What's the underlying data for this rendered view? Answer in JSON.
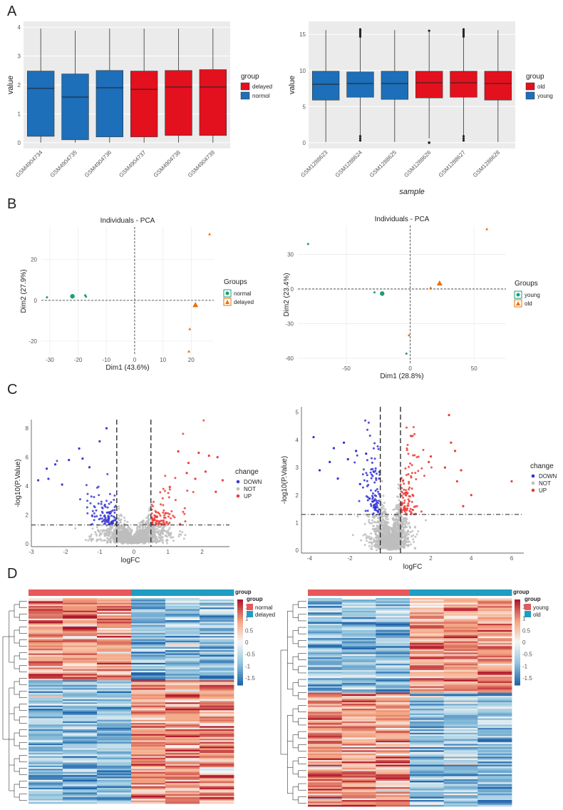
{
  "panels": {
    "A": "A",
    "B": "B",
    "C": "C",
    "D": "D"
  },
  "chart_data": [
    {
      "id": "A-left",
      "type": "box",
      "ylabel": "value",
      "ylim": [
        -0.2,
        4.2
      ],
      "yticks": [
        0,
        1,
        2,
        3,
        4
      ],
      "legend_title": "group",
      "groups": [
        {
          "name": "delayed",
          "color": "#e3101e"
        },
        {
          "name": "normol",
          "color": "#1c6fb8"
        }
      ],
      "boxes": [
        {
          "label": "GSM4904734",
          "group": "normol",
          "whislo": 0,
          "q1": 0.22,
          "med": 1.88,
          "q3": 2.48,
          "whishi": 3.95
        },
        {
          "label": "GSM4904735",
          "group": "normol",
          "whislo": 0,
          "q1": 0.1,
          "med": 1.58,
          "q3": 2.38,
          "whishi": 3.88
        },
        {
          "label": "GSM4904736",
          "group": "normol",
          "whislo": 0,
          "q1": 0.2,
          "med": 1.9,
          "q3": 2.5,
          "whishi": 3.95
        },
        {
          "label": "GSM4904737",
          "group": "delayed",
          "whislo": 0,
          "q1": 0.2,
          "med": 1.85,
          "q3": 2.48,
          "whishi": 3.95
        },
        {
          "label": "GSM4904738",
          "group": "delayed",
          "whislo": 0,
          "q1": 0.25,
          "med": 1.93,
          "q3": 2.5,
          "whishi": 3.95
        },
        {
          "label": "GSM4904739",
          "group": "delayed",
          "whislo": 0,
          "q1": 0.25,
          "med": 1.93,
          "q3": 2.53,
          "whishi": 3.95
        }
      ]
    },
    {
      "id": "A-right",
      "type": "box",
      "ylabel": "value",
      "xlabel": "sample",
      "ylim": [
        -0.8,
        16.8
      ],
      "yticks": [
        0,
        5,
        10,
        15
      ],
      "legend_title": "group",
      "groups": [
        {
          "name": "old",
          "color": "#e3101e"
        },
        {
          "name": "young",
          "color": "#1c6fb8"
        }
      ],
      "boxes": [
        {
          "label": "GSM1288623",
          "group": "young",
          "whislo": 0.1,
          "q1": 5.9,
          "med": 8.1,
          "q3": 9.9,
          "whishi": 15.6
        },
        {
          "label": "GSM1288624",
          "group": "young",
          "whislo": 1,
          "q1": 6.3,
          "med": 8.2,
          "q3": 9.8,
          "whishi": 15.3
        },
        {
          "label": "GSM1288625",
          "group": "young",
          "whislo": 0.1,
          "q1": 6.0,
          "med": 8.2,
          "q3": 9.9,
          "whishi": 15.6
        },
        {
          "label": "GSM1288626",
          "group": "old",
          "whislo": 0.6,
          "q1": 6.2,
          "med": 8.3,
          "q3": 9.9,
          "whishi": 15.3
        },
        {
          "label": "GSM1288627",
          "group": "old",
          "whislo": 1,
          "q1": 6.3,
          "med": 8.3,
          "q3": 9.9,
          "whishi": 15.3
        },
        {
          "label": "GSM1288628",
          "group": "old",
          "whislo": 0.1,
          "q1": 5.9,
          "med": 8.2,
          "q3": 9.9,
          "whishi": 15.6
        }
      ]
    },
    {
      "id": "B-left",
      "type": "scatter",
      "title": "Individuals - PCA",
      "xlabel": "Dim1 (43.6%)",
      "ylabel": "Dim2 (27.9%)",
      "xlim": [
        -33,
        28
      ],
      "ylim": [
        -27,
        36
      ],
      "xticks": [
        -30,
        -20,
        -10,
        0,
        10,
        20
      ],
      "yticks": [
        -20,
        0,
        20
      ],
      "legend_title": "Groups",
      "groups": [
        {
          "name": "normal",
          "color": "#1b9e77",
          "shape": "circle"
        },
        {
          "name": "delayed",
          "color": "#e6700f",
          "shape": "triangle"
        }
      ],
      "points": [
        {
          "x": -31,
          "y": 1.5,
          "group": "normal"
        },
        {
          "x": -17.5,
          "y": 2.5,
          "group": "normal"
        },
        {
          "x": -17.2,
          "y": 1.8,
          "group": "normal"
        },
        {
          "x": 26.5,
          "y": 32.5,
          "group": "delayed"
        },
        {
          "x": 19.5,
          "y": -14,
          "group": "delayed"
        },
        {
          "x": 19.2,
          "y": -25,
          "group": "delayed"
        }
      ],
      "centroids": [
        {
          "x": -22,
          "y": 2,
          "group": "normal"
        },
        {
          "x": 21.5,
          "y": -2.2,
          "group": "delayed"
        }
      ]
    },
    {
      "id": "B-right",
      "type": "scatter",
      "title": "Individuals - PCA",
      "xlabel": "Dim1 (28.8%)",
      "ylabel": "Dim2 (23.4%)",
      "xlim": [
        -88,
        75
      ],
      "ylim": [
        -65,
        55
      ],
      "xticks": [
        -50,
        0,
        50
      ],
      "yticks": [
        -60,
        -30,
        0,
        30
      ],
      "legend_title": "Groups",
      "groups": [
        {
          "name": "young",
          "color": "#1b9e77",
          "shape": "circle"
        },
        {
          "name": "old",
          "color": "#e6700f",
          "shape": "triangle"
        }
      ],
      "points": [
        {
          "x": -80,
          "y": 39,
          "group": "young"
        },
        {
          "x": -28,
          "y": -3,
          "group": "young"
        },
        {
          "x": -3,
          "y": -56,
          "group": "young"
        },
        {
          "x": 60,
          "y": 52,
          "group": "old"
        },
        {
          "x": 16,
          "y": 1,
          "group": "old"
        },
        {
          "x": -1,
          "y": -40,
          "group": "old"
        }
      ],
      "centroids": [
        {
          "x": -22,
          "y": -4,
          "group": "young"
        },
        {
          "x": 23,
          "y": 5,
          "group": "old"
        }
      ]
    },
    {
      "id": "C-left",
      "type": "scatter",
      "subtype": "volcano",
      "xlabel": "logFC",
      "ylabel": "-log10(P.Value)",
      "xlim": [
        -3.0,
        2.8
      ],
      "ylim": [
        -0.2,
        8.6
      ],
      "xticks": [
        -3,
        -2,
        -1,
        0,
        1,
        2
      ],
      "yticks": [
        0,
        2,
        4,
        6,
        8
      ],
      "fc_cutoff": 0.5,
      "p_line": 1.3,
      "legend_title": "change",
      "groups": [
        {
          "name": "DOWN",
          "color": "#3a3ad1"
        },
        {
          "name": "NOT",
          "color": "#bdbdbd"
        },
        {
          "name": "UP",
          "color": "#ee3b36"
        }
      ],
      "down_extremes": [
        [
          -2.8,
          4.4
        ],
        [
          -2.55,
          5.2
        ],
        [
          -2.5,
          4.5
        ],
        [
          -2.3,
          5.5
        ],
        [
          -1.9,
          5.8
        ],
        [
          -1.6,
          6.6
        ],
        [
          -1.5,
          5.9
        ],
        [
          -1.0,
          7.1
        ],
        [
          -0.8,
          8.0
        ],
        [
          -2.1,
          4.1
        ],
        [
          -1.3,
          5.3
        ]
      ],
      "up_extremes": [
        [
          2.2,
          6.1
        ],
        [
          2.45,
          6.0
        ],
        [
          2.1,
          5.0
        ],
        [
          1.9,
          6.3
        ],
        [
          2.6,
          4.4
        ],
        [
          1.6,
          5.6
        ],
        [
          1.3,
          6.4
        ],
        [
          1.8,
          4.5
        ],
        [
          2.4,
          3.6
        ],
        [
          1.55,
          4.9
        ]
      ]
    },
    {
      "id": "C-right",
      "type": "scatter",
      "subtype": "volcano",
      "xlabel": "logFC",
      "ylabel": "-log10(P.Value)",
      "xlim": [
        -4.4,
        6.6
      ],
      "ylim": [
        -0.1,
        5.2
      ],
      "xticks": [
        -4,
        -2,
        0,
        2,
        4,
        6
      ],
      "yticks": [
        0,
        1,
        2,
        3,
        4,
        5
      ],
      "fc_cutoff": 0.5,
      "p_line": 1.3,
      "legend_title": "change",
      "groups": [
        {
          "name": "DOWN",
          "color": "#2f2fd8"
        },
        {
          "name": "NOT",
          "color": "#bdbdbd"
        },
        {
          "name": "UP",
          "color": "#ee3b36"
        }
      ],
      "down_extremes": [
        [
          -3.8,
          4.1
        ],
        [
          -3.0,
          3.2
        ],
        [
          -2.8,
          3.7
        ],
        [
          -2.3,
          3.9
        ],
        [
          -2.1,
          3.3
        ],
        [
          -1.7,
          3.6
        ],
        [
          -1.2,
          3.5
        ],
        [
          -3.5,
          2.9
        ],
        [
          -2.6,
          2.6
        ],
        [
          -1.5,
          2.4
        ]
      ],
      "up_extremes": [
        [
          2.9,
          4.9
        ],
        [
          3.0,
          3.9
        ],
        [
          3.2,
          3.6
        ],
        [
          2.0,
          3.4
        ],
        [
          3.5,
          2.9
        ],
        [
          6.0,
          2.5
        ],
        [
          4.0,
          2.0
        ],
        [
          3.6,
          1.6
        ],
        [
          2.7,
          3.0
        ],
        [
          3.3,
          2.5
        ],
        [
          1.9,
          3.2
        ]
      ]
    },
    {
      "id": "D-left",
      "type": "heatmap",
      "legend_title": "group",
      "groups": [
        {
          "name": "normal",
          "color": "#e8585b"
        },
        {
          "name": "delayed",
          "color": "#1f9dc2"
        }
      ],
      "colorbar_ticks": [
        "1.5",
        "1",
        "0.5",
        "0",
        "-0.5",
        "-1",
        "-1.5"
      ],
      "columns": 6,
      "rows": 300,
      "column_groups": [
        "normal",
        "normal",
        "normal",
        "delayed",
        "delayed",
        "delayed"
      ],
      "upper_fraction": 0.4
    },
    {
      "id": "D-right",
      "type": "heatmap",
      "legend_title": "group",
      "groups": [
        {
          "name": "young",
          "color": "#e8585b"
        },
        {
          "name": "old",
          "color": "#1f9dc2"
        }
      ],
      "colorbar_ticks": [
        "1.5",
        "1",
        "0.5",
        "0",
        "-0.5",
        "-1",
        "-1.5"
      ],
      "columns": 6,
      "rows": 300,
      "column_groups": [
        "young",
        "young",
        "young",
        "old",
        "old",
        "old"
      ],
      "upper_fraction": 0.45
    }
  ]
}
